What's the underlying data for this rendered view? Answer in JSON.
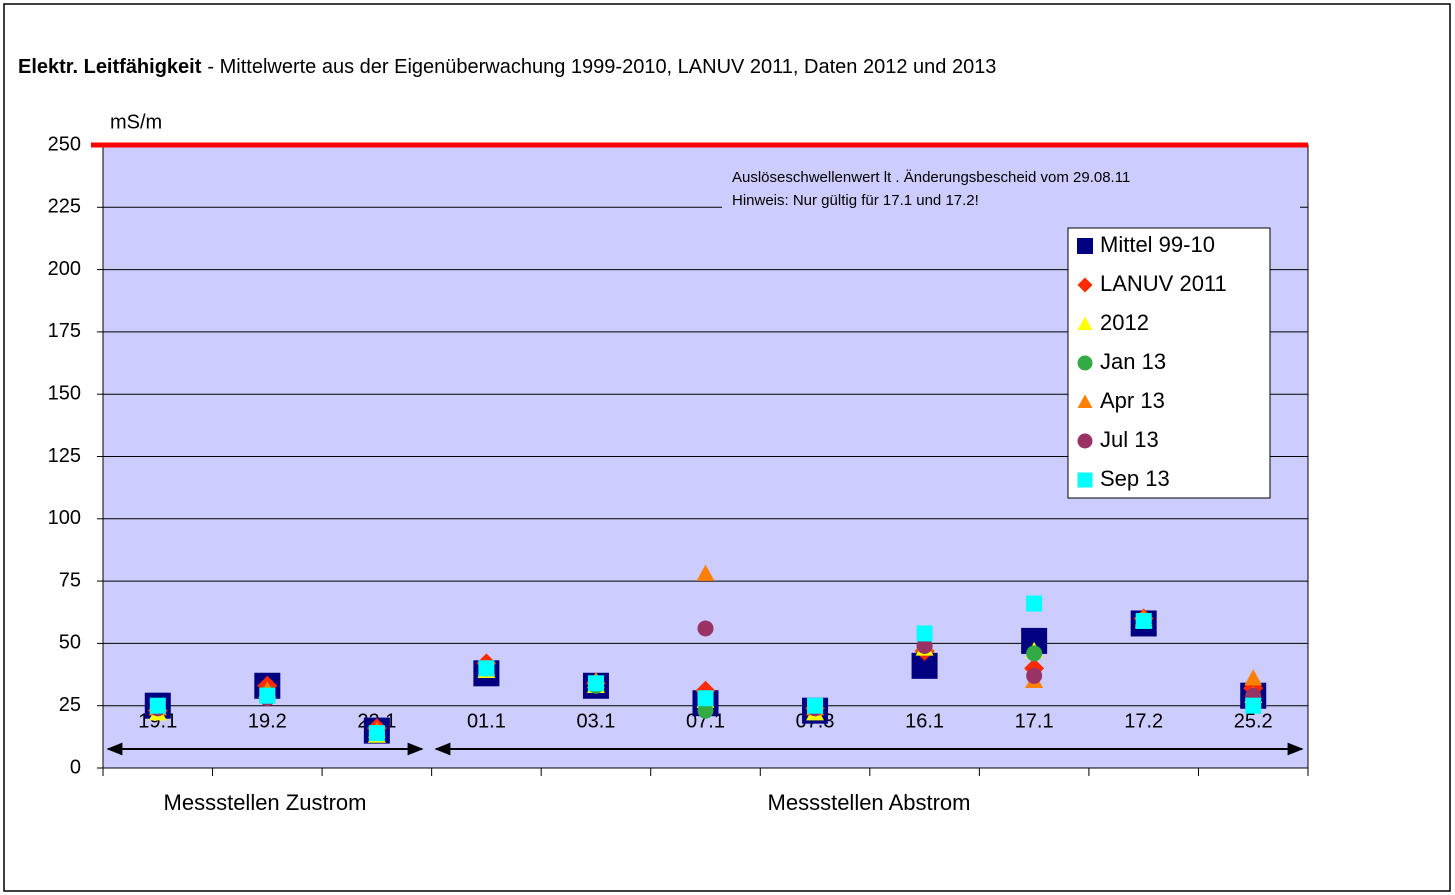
{
  "chart_data": {
    "type": "scatter",
    "title": "Elektr. Leitfähigkeit",
    "subtitle": "- Mittelwerte aus der Eigenüberwachung 1999-2010, LANUV 2011, Daten 2012 und 2013",
    "y_label": "mS/m",
    "categories": [
      "19.1",
      "19.2",
      "22.1",
      "01.1",
      "03.1",
      "07.1",
      "07.3",
      "16.1",
      "17.1",
      "17.2",
      "25.2"
    ],
    "series": [
      {
        "name": "Mittel 99-10",
        "color": "#000080",
        "marker": "square",
        "values": [
          25,
          33,
          15,
          38,
          33,
          26,
          23,
          41,
          51,
          58,
          29
        ]
      },
      {
        "name": "LANUV 2011",
        "color": "#ff2a00",
        "marker": "diamond",
        "values": [
          23,
          33,
          16,
          42,
          34,
          31,
          24,
          47,
          40,
          60,
          32
        ]
      },
      {
        "name": "2012",
        "color": "#ffff00",
        "marker": "triangle",
        "values": [
          22,
          31,
          13,
          39,
          33,
          27,
          22,
          48,
          47,
          59,
          29
        ]
      },
      {
        "name": "Jan 13",
        "color": "#33aa44",
        "marker": "circle",
        "values": [
          24,
          30,
          14,
          40,
          33,
          23,
          24,
          49,
          46,
          59,
          28
        ]
      },
      {
        "name": "Apr 13",
        "color": "#ff8000",
        "marker": "triangle",
        "values": [
          24,
          31,
          15,
          40,
          35,
          78,
          24,
          50,
          35,
          60,
          36
        ]
      },
      {
        "name": "Jul 13",
        "color": "#993366",
        "marker": "circle",
        "values": [
          24,
          28,
          14,
          40,
          34,
          56,
          24,
          49,
          37,
          59,
          29
        ]
      },
      {
        "name": "Sep 13",
        "color": "#00ffff",
        "marker": "square",
        "values": [
          25,
          29,
          14,
          40,
          34,
          28,
          25,
          54,
          66,
          59,
          25
        ]
      }
    ],
    "ylim": [
      0,
      250
    ],
    "yticks": [
      0,
      25,
      50,
      75,
      100,
      125,
      150,
      175,
      200,
      225,
      250
    ],
    "grid": true,
    "background": "#ccccff",
    "threshold": {
      "value": 250,
      "color": "#ff0000"
    },
    "annotation": [
      "Auslöseschwellenwert lt . Änderungsbescheid vom 29.08.11",
      "Hinweis: Nur gültig für 17.1 und 17.2!"
    ],
    "groups": [
      "Messstellen Zustrom",
      "Messstellen Abstrom"
    ],
    "legend": "upper right"
  }
}
